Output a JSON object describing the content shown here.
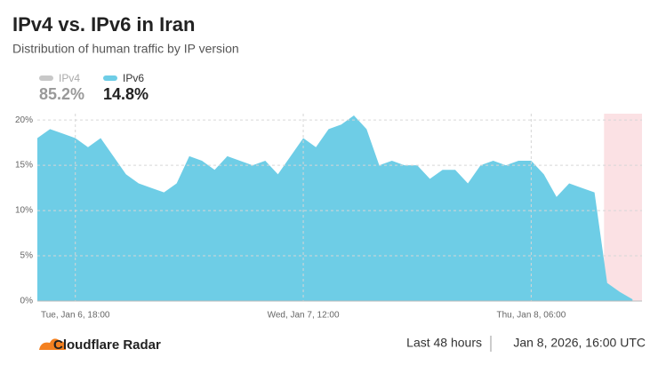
{
  "chart_data": {
    "type": "area",
    "title": "IPv4 vs. IPv6 in Iran",
    "subtitle": "Distribution of human traffic by IP version",
    "x": [
      "2026-01-06T15:00",
      "2026-01-06T16:00",
      "2026-01-06T17:00",
      "2026-01-06T18:00",
      "2026-01-06T19:00",
      "2026-01-06T20:00",
      "2026-01-06T21:00",
      "2026-01-06T22:00",
      "2026-01-06T23:00",
      "2026-01-07T00:00",
      "2026-01-07T01:00",
      "2026-01-07T02:00",
      "2026-01-07T03:00",
      "2026-01-07T04:00",
      "2026-01-07T05:00",
      "2026-01-07T06:00",
      "2026-01-07T07:00",
      "2026-01-07T08:00",
      "2026-01-07T09:00",
      "2026-01-07T10:00",
      "2026-01-07T11:00",
      "2026-01-07T12:00",
      "2026-01-07T13:00",
      "2026-01-07T14:00",
      "2026-01-07T15:00",
      "2026-01-07T16:00",
      "2026-01-07T17:00",
      "2026-01-07T18:00",
      "2026-01-07T19:00",
      "2026-01-07T20:00",
      "2026-01-07T21:00",
      "2026-01-07T22:00",
      "2026-01-07T23:00",
      "2026-01-08T00:00",
      "2026-01-08T01:00",
      "2026-01-08T02:00",
      "2026-01-08T03:00",
      "2026-01-08T04:00",
      "2026-01-08T05:00",
      "2026-01-08T06:00",
      "2026-01-08T07:00",
      "2026-01-08T08:00",
      "2026-01-08T09:00",
      "2026-01-08T10:00",
      "2026-01-08T11:00",
      "2026-01-08T12:00",
      "2026-01-08T13:00",
      "2026-01-08T14:00"
    ],
    "series": [
      {
        "name": "IPv4",
        "color": "#c8c8c8",
        "summary": "85.2%"
      },
      {
        "name": "IPv6",
        "color": "#6ecde6",
        "summary": "14.8%",
        "values": [
          18,
          19,
          18.5,
          18,
          17,
          18,
          16,
          14,
          13,
          12.5,
          12,
          13,
          16,
          15.5,
          14.5,
          16,
          15.5,
          15,
          15.5,
          14,
          16,
          18,
          17,
          19,
          19.5,
          20.5,
          19,
          15,
          15.5,
          15,
          15,
          13.5,
          14.5,
          14.5,
          13,
          15,
          15.5,
          15,
          15.5,
          15.5,
          14,
          11.5,
          13,
          12.5,
          12,
          2,
          1,
          0.2
        ]
      }
    ],
    "xlim": [
      "2026-01-06T15:00",
      "2026-01-08T14:45"
    ],
    "xticks": [
      {
        "value": "2026-01-06T18:00",
        "label": "Tue, Jan 6, 18:00"
      },
      {
        "value": "2026-01-07T12:00",
        "label": "Wed, Jan 7, 12:00"
      },
      {
        "value": "2026-01-08T06:00",
        "label": "Thu, Jan 8, 06:00"
      }
    ],
    "ylim": [
      0,
      20.7
    ],
    "yticks": [
      {
        "value": 0,
        "label": "0%"
      },
      {
        "value": 5,
        "label": "5%"
      },
      {
        "value": 10,
        "label": "10%"
      },
      {
        "value": 15,
        "label": "15%"
      },
      {
        "value": 20,
        "label": "20%"
      }
    ],
    "grid": true,
    "highlight_range": [
      "2026-01-08T11:45",
      "2026-01-08T14:45"
    ],
    "highlight_color": "#fbe1e4",
    "footer": {
      "brand": "Cloudflare Radar",
      "period": "Last 48 hours",
      "timestamp": "Jan 8, 2026, 16:00 UTC"
    }
  }
}
